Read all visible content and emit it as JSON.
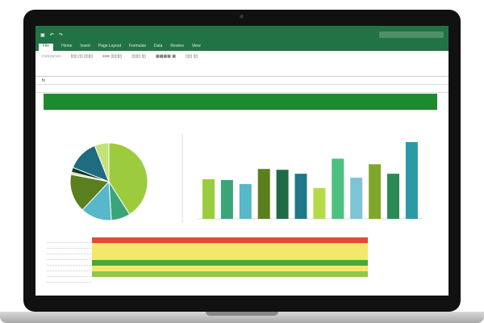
{
  "window": {
    "title": "",
    "accent": "#217346"
  },
  "ribbon": {
    "tabs": [
      "File",
      "Home",
      "Insert",
      "Page Layout",
      "Formulas",
      "Data",
      "Review",
      "View"
    ],
    "active_tab": 0
  },
  "banner": {
    "color": "#1e8a2e"
  },
  "chart_data": [
    {
      "type": "pie",
      "values": [
        41,
        8,
        13,
        16,
        1,
        2,
        13,
        6
      ],
      "colors": [
        "#9ccc3d",
        "#3aa57a",
        "#56b8c9",
        "#5a7f1f",
        "#cfe3a0",
        "#123a2a",
        "#1f6b80",
        "#c3e27a"
      ]
    },
    {
      "type": "bar",
      "values": [
        50,
        49,
        44,
        63,
        62,
        57,
        39,
        76,
        52,
        69,
        57,
        97
      ],
      "colors": [
        "#9ccc3d",
        "#3aa57a",
        "#56b8c9",
        "#5a7f1f",
        "#1e6b45",
        "#1e7888",
        "#b6d94a",
        "#4cc080",
        "#7fc4d6",
        "#7fa82a",
        "#2a8a55",
        "#2a9aa8"
      ]
    }
  ],
  "heatmap": {
    "rows": [
      "#e04a3a",
      "#f2e86a",
      "#f2e86a",
      "#f2e86a",
      "#4aa83a",
      "#f2e86a",
      "#8cc84a",
      "#ffffff"
    ]
  }
}
